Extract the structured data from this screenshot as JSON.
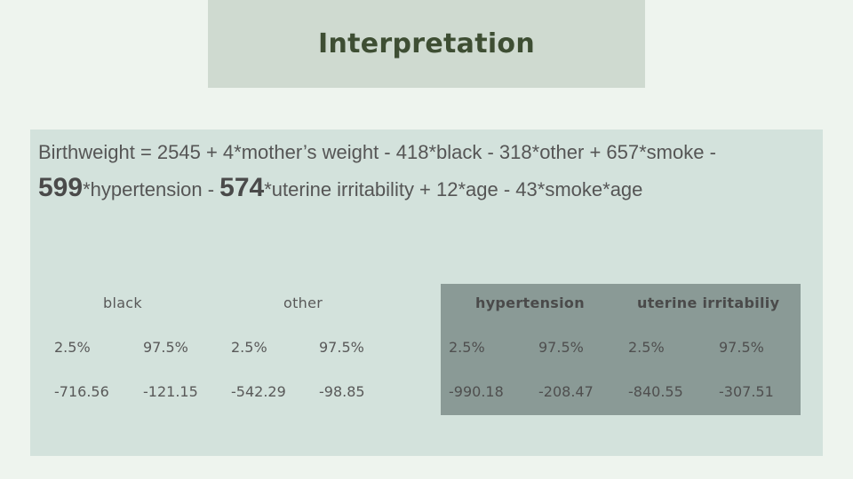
{
  "title": "Interpretation",
  "equation": {
    "line1": "Birthweight = 2545 + 4*mother’s weight - 418*black - 318*other + 657*smoke -",
    "coef_hypertension": "599",
    "text_hypertension": "*hypertension - ",
    "coef_uterine": "574",
    "text_rest": "*uterine irritability + 12*age - 43*smoke*age"
  },
  "ci_left": {
    "black": {
      "label": "black",
      "lower_label": "2.5%",
      "upper_label": "97.5%",
      "lower": "-716.56",
      "upper": "-121.15"
    },
    "other": {
      "label": "other",
      "lower_label": "2.5%",
      "upper_label": "97.5%",
      "lower": "-542.29",
      "upper": "-98.85"
    }
  },
  "ci_right": {
    "hypertension": {
      "label": "hypertension",
      "lower_label": "2.5%",
      "upper_label": "97.5%",
      "lower": "-990.18",
      "upper": "-208.47"
    },
    "uterine": {
      "label": "uterine irritabiliy",
      "lower_label": "2.5%",
      "upper_label": "97.5%",
      "lower": "-840.55",
      "upper": "-307.51"
    }
  }
}
